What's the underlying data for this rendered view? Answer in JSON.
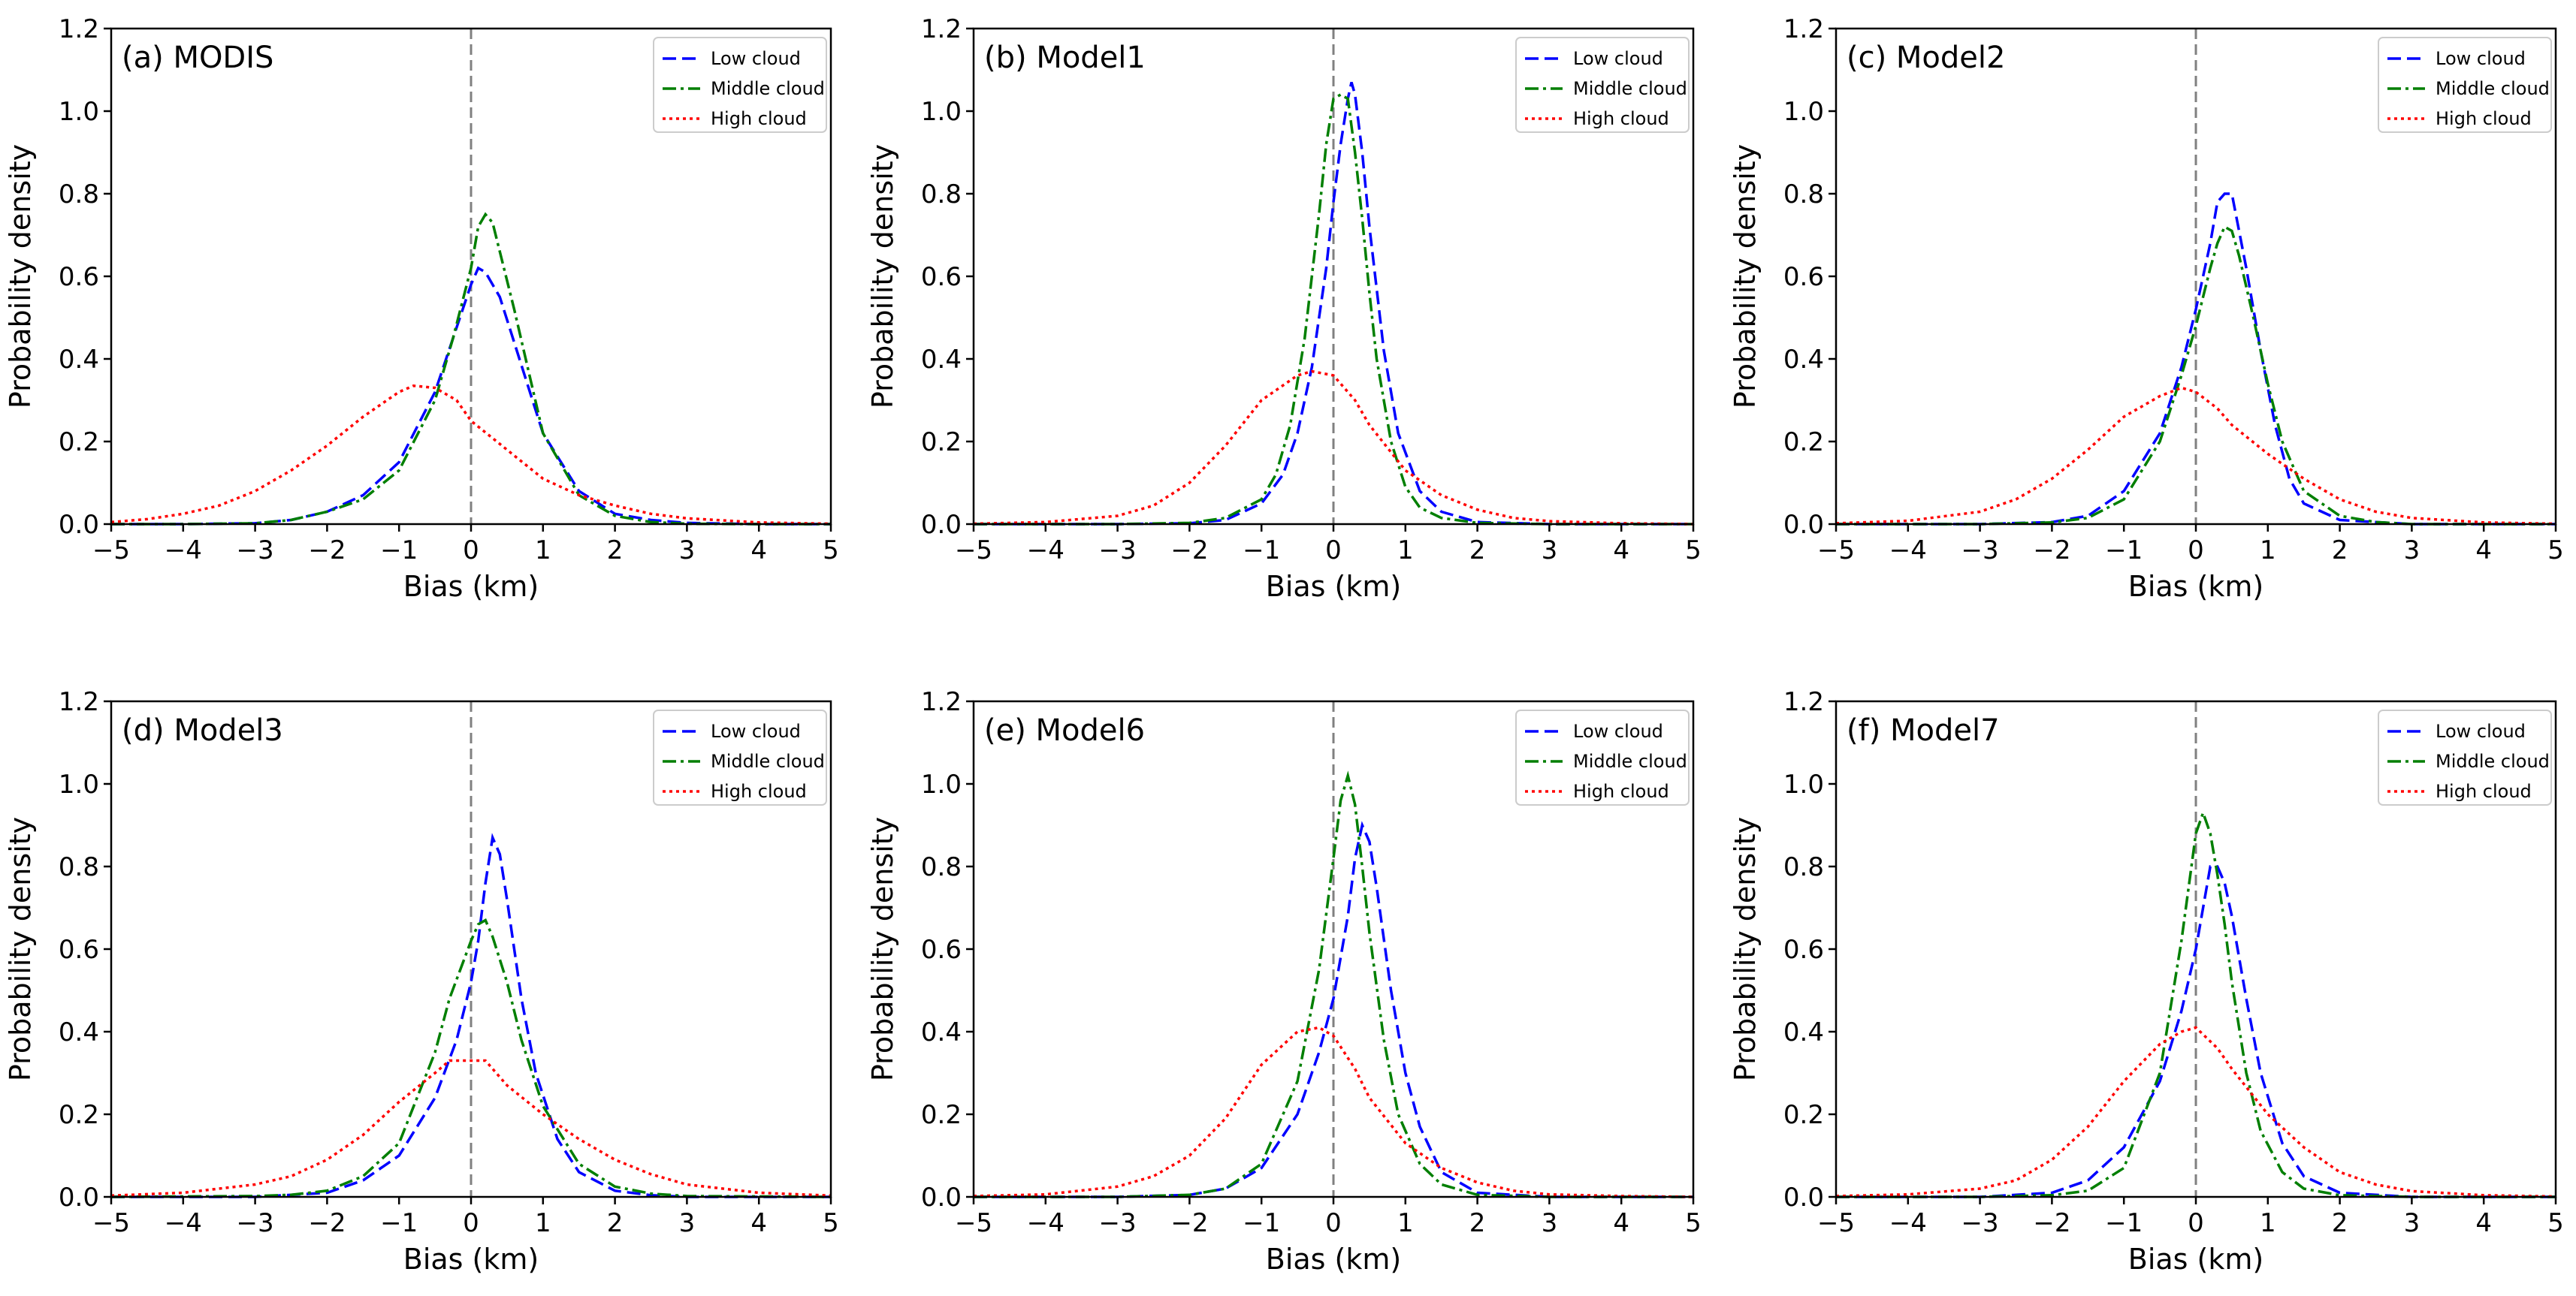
{
  "figure": {
    "xlabel": "Bias (km)",
    "ylabel": "Probability density",
    "xlim": [
      -5,
      5
    ],
    "ylim": [
      0,
      1.2
    ],
    "xticks": [
      "−5",
      "−4",
      "−3",
      "−2",
      "−1",
      "0",
      "1",
      "2",
      "3",
      "4",
      "5"
    ],
    "yticks": [
      "0.0",
      "0.2",
      "0.4",
      "0.6",
      "0.8",
      "1.0",
      "1.2"
    ],
    "legend": [
      "Low cloud",
      "Middle cloud",
      "High cloud"
    ],
    "colors": {
      "low": "#0000ff",
      "middle": "#007f00",
      "high": "#ff0000",
      "zero_line": "#808080"
    }
  },
  "chart_data": [
    {
      "type": "line",
      "title": "(a) MODIS",
      "xlabel": "Bias (km)",
      "ylabel": "Probability density",
      "xlim": [
        -5,
        5
      ],
      "ylim": [
        0,
        1.2
      ],
      "series": [
        {
          "name": "Low cloud",
          "x": [
            -5,
            -4,
            -3,
            -2.5,
            -2,
            -1.5,
            -1,
            -0.5,
            -0.25,
            0,
            0.1,
            0.2,
            0.4,
            0.6,
            0.8,
            1,
            1.5,
            2,
            2.5,
            3,
            4,
            5
          ],
          "y": [
            0,
            0,
            0.002,
            0.01,
            0.03,
            0.07,
            0.15,
            0.32,
            0.45,
            0.58,
            0.62,
            0.61,
            0.55,
            0.44,
            0.33,
            0.22,
            0.08,
            0.025,
            0.01,
            0.003,
            0,
            0
          ]
        },
        {
          "name": "Middle cloud",
          "x": [
            -5,
            -4,
            -3,
            -2.5,
            -2,
            -1.5,
            -1,
            -0.5,
            -0.25,
            0,
            0.1,
            0.2,
            0.3,
            0.4,
            0.6,
            0.8,
            1,
            1.5,
            2,
            2.5,
            3,
            4,
            5
          ],
          "y": [
            0,
            0,
            0.002,
            0.01,
            0.03,
            0.06,
            0.13,
            0.3,
            0.45,
            0.62,
            0.72,
            0.75,
            0.73,
            0.66,
            0.52,
            0.37,
            0.22,
            0.07,
            0.02,
            0.005,
            0.001,
            0,
            0
          ]
        },
        {
          "name": "High cloud",
          "x": [
            -5,
            -4.5,
            -4,
            -3.5,
            -3,
            -2.5,
            -2,
            -1.5,
            -1,
            -0.8,
            -0.5,
            -0.2,
            0,
            0.5,
            1,
            1.5,
            2,
            2.5,
            3,
            4,
            5
          ],
          "y": [
            0.005,
            0.012,
            0.025,
            0.045,
            0.08,
            0.13,
            0.19,
            0.26,
            0.32,
            0.335,
            0.33,
            0.3,
            0.25,
            0.18,
            0.11,
            0.07,
            0.045,
            0.025,
            0.014,
            0.004,
            0.001
          ]
        }
      ]
    },
    {
      "type": "line",
      "title": "(b) Model1",
      "xlabel": "Bias (km)",
      "ylabel": "Probability density",
      "xlim": [
        -5,
        5
      ],
      "ylim": [
        0,
        1.2
      ],
      "series": [
        {
          "name": "Low cloud",
          "x": [
            -5,
            -3,
            -2,
            -1.5,
            -1,
            -0.7,
            -0.5,
            -0.3,
            -0.1,
            0,
            0.1,
            0.2,
            0.25,
            0.3,
            0.4,
            0.5,
            0.7,
            0.9,
            1.2,
            1.5,
            2,
            3,
            5
          ],
          "y": [
            0,
            0,
            0.002,
            0.01,
            0.05,
            0.12,
            0.22,
            0.38,
            0.62,
            0.78,
            0.92,
            1.03,
            1.07,
            1.04,
            0.9,
            0.72,
            0.42,
            0.22,
            0.08,
            0.03,
            0.005,
            0,
            0
          ]
        },
        {
          "name": "Middle cloud",
          "x": [
            -5,
            -3,
            -2,
            -1.5,
            -1,
            -0.8,
            -0.6,
            -0.4,
            -0.2,
            -0.1,
            0,
            0.1,
            0.2,
            0.3,
            0.4,
            0.5,
            0.6,
            0.8,
            1,
            1.2,
            1.5,
            2,
            3,
            5
          ],
          "y": [
            0,
            0,
            0.003,
            0.015,
            0.06,
            0.12,
            0.24,
            0.45,
            0.75,
            0.92,
            1.03,
            1.04,
            1.03,
            0.9,
            0.74,
            0.56,
            0.4,
            0.2,
            0.09,
            0.04,
            0.015,
            0.003,
            0,
            0
          ]
        },
        {
          "name": "High cloud",
          "x": [
            -5,
            -4,
            -3,
            -2.5,
            -2,
            -1.5,
            -1,
            -0.5,
            -0.3,
            0,
            0.3,
            0.5,
            1,
            1.5,
            2,
            2.5,
            3,
            4,
            5
          ],
          "y": [
            0.001,
            0.005,
            0.02,
            0.045,
            0.1,
            0.19,
            0.3,
            0.36,
            0.37,
            0.36,
            0.3,
            0.24,
            0.13,
            0.07,
            0.035,
            0.015,
            0.007,
            0.002,
            0
          ]
        }
      ]
    },
    {
      "type": "line",
      "title": "(c) Model2",
      "xlabel": "Bias (km)",
      "ylabel": "Probability density",
      "xlim": [
        -5,
        5
      ],
      "ylim": [
        0,
        1.2
      ],
      "series": [
        {
          "name": "Low cloud",
          "x": [
            -5,
            -3,
            -2,
            -1.5,
            -1,
            -0.5,
            -0.2,
            0,
            0.2,
            0.3,
            0.4,
            0.5,
            0.7,
            0.9,
            1.1,
            1.3,
            1.5,
            2,
            3,
            5
          ],
          "y": [
            0,
            0,
            0.005,
            0.02,
            0.08,
            0.22,
            0.38,
            0.52,
            0.68,
            0.78,
            0.8,
            0.8,
            0.62,
            0.42,
            0.24,
            0.11,
            0.05,
            0.01,
            0,
            0
          ]
        },
        {
          "name": "Middle cloud",
          "x": [
            -5,
            -3,
            -2,
            -1.5,
            -1,
            -0.5,
            -0.2,
            0,
            0.2,
            0.3,
            0.4,
            0.5,
            0.6,
            0.8,
            1,
            1.2,
            1.5,
            2,
            2.5,
            3,
            5
          ],
          "y": [
            0,
            0,
            0.004,
            0.015,
            0.06,
            0.2,
            0.36,
            0.48,
            0.62,
            0.68,
            0.72,
            0.71,
            0.65,
            0.5,
            0.34,
            0.2,
            0.08,
            0.02,
            0.005,
            0,
            0
          ]
        },
        {
          "name": "High cloud",
          "x": [
            -5,
            -4,
            -3,
            -2.5,
            -2,
            -1.5,
            -1,
            -0.5,
            -0.2,
            0,
            0.3,
            0.5,
            1,
            1.5,
            2,
            2.5,
            3,
            4,
            5
          ],
          "y": [
            0.002,
            0.008,
            0.03,
            0.06,
            0.11,
            0.18,
            0.26,
            0.31,
            0.33,
            0.32,
            0.28,
            0.24,
            0.17,
            0.11,
            0.06,
            0.03,
            0.015,
            0.004,
            0.001
          ]
        }
      ]
    },
    {
      "type": "line",
      "title": "(d) Model3",
      "xlabel": "Bias (km)",
      "ylabel": "Probability density",
      "xlim": [
        -5,
        5
      ],
      "ylim": [
        0,
        1.2
      ],
      "series": [
        {
          "name": "Low cloud",
          "x": [
            -5,
            -3,
            -2,
            -1.5,
            -1,
            -0.5,
            -0.2,
            0,
            0.1,
            0.2,
            0.3,
            0.4,
            0.5,
            0.7,
            0.9,
            1.2,
            1.5,
            2,
            2.5,
            3,
            5
          ],
          "y": [
            0,
            0,
            0.01,
            0.04,
            0.1,
            0.24,
            0.38,
            0.52,
            0.62,
            0.76,
            0.87,
            0.83,
            0.72,
            0.48,
            0.3,
            0.14,
            0.06,
            0.015,
            0.004,
            0,
            0
          ]
        },
        {
          "name": "Middle cloud",
          "x": [
            -5,
            -3,
            -2.5,
            -2,
            -1.5,
            -1,
            -0.5,
            -0.3,
            0,
            0.1,
            0.2,
            0.3,
            0.5,
            0.7,
            1,
            1.5,
            2,
            2.5,
            3,
            5
          ],
          "y": [
            0,
            0.002,
            0.005,
            0.015,
            0.05,
            0.13,
            0.35,
            0.48,
            0.62,
            0.66,
            0.67,
            0.63,
            0.52,
            0.38,
            0.22,
            0.08,
            0.025,
            0.008,
            0.002,
            0
          ]
        },
        {
          "name": "High cloud",
          "x": [
            -5,
            -4,
            -3,
            -2.5,
            -2,
            -1.5,
            -1,
            -0.5,
            -0.3,
            0,
            0.2,
            0.5,
            1,
            1.5,
            2,
            2.5,
            3,
            4,
            5
          ],
          "y": [
            0.003,
            0.01,
            0.03,
            0.05,
            0.09,
            0.15,
            0.23,
            0.3,
            0.33,
            0.33,
            0.33,
            0.27,
            0.2,
            0.14,
            0.09,
            0.055,
            0.03,
            0.01,
            0.003
          ]
        }
      ]
    },
    {
      "type": "line",
      "title": "(e) Model6",
      "xlabel": "Bias (km)",
      "ylabel": "Probability density",
      "xlim": [
        -5,
        5
      ],
      "ylim": [
        0,
        1.2
      ],
      "series": [
        {
          "name": "Low cloud",
          "x": [
            -5,
            -3,
            -2,
            -1.5,
            -1,
            -0.5,
            -0.2,
            0,
            0.2,
            0.3,
            0.4,
            0.5,
            0.6,
            0.8,
            1,
            1.2,
            1.5,
            2,
            3,
            5
          ],
          "y": [
            0,
            0,
            0.005,
            0.02,
            0.07,
            0.2,
            0.35,
            0.48,
            0.68,
            0.82,
            0.9,
            0.86,
            0.75,
            0.5,
            0.3,
            0.17,
            0.06,
            0.01,
            0,
            0
          ]
        },
        {
          "name": "Middle cloud",
          "x": [
            -5,
            -3,
            -2,
            -1.5,
            -1,
            -0.5,
            -0.2,
            0,
            0.1,
            0.2,
            0.3,
            0.4,
            0.5,
            0.7,
            0.9,
            1.2,
            1.5,
            2,
            3,
            5
          ],
          "y": [
            0,
            0,
            0.005,
            0.02,
            0.08,
            0.28,
            0.55,
            0.82,
            0.96,
            1.02,
            0.95,
            0.8,
            0.64,
            0.38,
            0.2,
            0.08,
            0.03,
            0.005,
            0,
            0
          ]
        },
        {
          "name": "High cloud",
          "x": [
            -5,
            -4,
            -3,
            -2.5,
            -2,
            -1.5,
            -1,
            -0.5,
            -0.2,
            0,
            0.3,
            0.5,
            1,
            1.5,
            2,
            2.5,
            3,
            4,
            5
          ],
          "y": [
            0.002,
            0.006,
            0.025,
            0.05,
            0.1,
            0.19,
            0.32,
            0.4,
            0.41,
            0.39,
            0.31,
            0.24,
            0.13,
            0.07,
            0.035,
            0.015,
            0.006,
            0.002,
            0
          ]
        }
      ]
    },
    {
      "type": "line",
      "title": "(f) Model7",
      "xlabel": "Bias (km)",
      "ylabel": "Probability density",
      "xlim": [
        -5,
        5
      ],
      "ylim": [
        0,
        1.2
      ],
      "series": [
        {
          "name": "Low cloud",
          "x": [
            -5,
            -3,
            -2,
            -1.5,
            -1,
            -0.5,
            -0.2,
            0,
            0.1,
            0.2,
            0.3,
            0.4,
            0.5,
            0.7,
            0.9,
            1.2,
            1.5,
            2,
            3,
            5
          ],
          "y": [
            0,
            0,
            0.01,
            0.04,
            0.12,
            0.28,
            0.45,
            0.6,
            0.7,
            0.8,
            0.8,
            0.76,
            0.68,
            0.48,
            0.3,
            0.13,
            0.05,
            0.01,
            0,
            0
          ]
        },
        {
          "name": "Middle cloud",
          "x": [
            -5,
            -3,
            -2,
            -1.5,
            -1,
            -0.5,
            -0.2,
            0,
            0.1,
            0.2,
            0.3,
            0.4,
            0.5,
            0.7,
            0.9,
            1.2,
            1.5,
            2,
            3,
            5
          ],
          "y": [
            0,
            0,
            0.004,
            0.015,
            0.07,
            0.3,
            0.62,
            0.88,
            0.93,
            0.88,
            0.78,
            0.66,
            0.52,
            0.3,
            0.16,
            0.06,
            0.02,
            0.004,
            0,
            0
          ]
        },
        {
          "name": "High cloud",
          "x": [
            -5,
            -4,
            -3,
            -2.5,
            -2,
            -1.5,
            -1,
            -0.5,
            -0.2,
            0,
            0.3,
            0.5,
            1,
            1.5,
            2,
            2.5,
            3,
            4,
            5
          ],
          "y": [
            0.002,
            0.006,
            0.02,
            0.04,
            0.09,
            0.17,
            0.28,
            0.37,
            0.4,
            0.41,
            0.36,
            0.31,
            0.2,
            0.12,
            0.06,
            0.03,
            0.014,
            0.004,
            0.001
          ]
        }
      ]
    }
  ]
}
